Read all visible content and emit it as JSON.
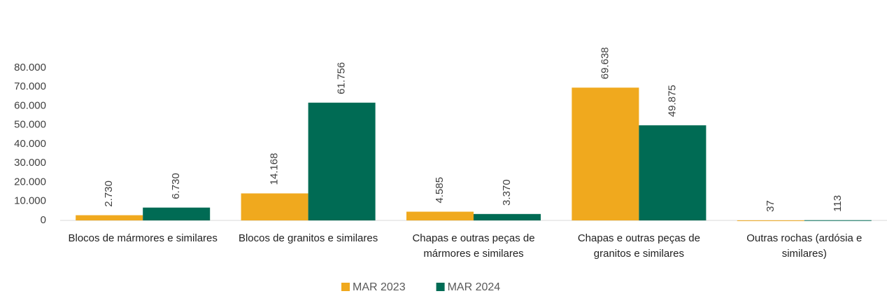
{
  "chart_data": {
    "type": "bar",
    "categories": [
      "Blocos de mármores e similares",
      "Blocos de granitos e similares",
      "Chapas e outras peças de mármores e similares",
      "Chapas e outras peças de granitos e similares",
      "Outras rochas (ardósia e similares)"
    ],
    "series": [
      {
        "name": "MAR 2023",
        "color": "#f0a91e",
        "values": [
          2730,
          14168,
          4585,
          69638,
          37
        ],
        "value_labels": [
          "2.730",
          "14.168",
          "4.585",
          "69.638",
          "37"
        ]
      },
      {
        "name": "MAR 2024",
        "color": "#006b54",
        "values": [
          6730,
          61756,
          3370,
          49875,
          113
        ],
        "value_labels": [
          "6.730",
          "61.756",
          "3.370",
          "49.875",
          "113"
        ]
      }
    ],
    "ylim": [
      0,
      80000
    ],
    "yticks": [
      {
        "value": 0,
        "label": "0"
      },
      {
        "value": 10000,
        "label": "10.000"
      },
      {
        "value": 20000,
        "label": "20.000"
      },
      {
        "value": 30000,
        "label": "30.000"
      },
      {
        "value": 40000,
        "label": "40.000"
      },
      {
        "value": 50000,
        "label": "50.000"
      },
      {
        "value": 60000,
        "label": "60.000"
      },
      {
        "value": 70000,
        "label": "70.000"
      },
      {
        "value": 80000,
        "label": "80.000"
      }
    ],
    "legend": "bottom"
  }
}
